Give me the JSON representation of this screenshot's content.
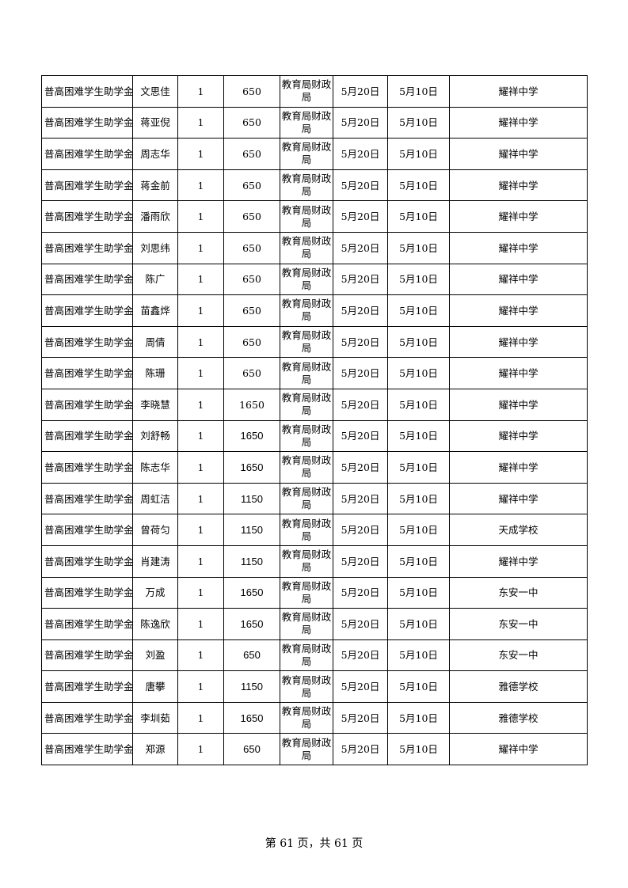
{
  "table": {
    "rows": [
      {
        "item": "普高困难学生助学金",
        "name": "文思佳",
        "count": "1",
        "amount": "650",
        "dept": "教育局财政局",
        "date1": "5月20日",
        "date2": "5月10日",
        "school": "耀祥中学"
      },
      {
        "item": "普高困难学生助学金",
        "name": "蒋亚倪",
        "count": "1",
        "amount": "650",
        "dept": "教育局财政局",
        "date1": "5月20日",
        "date2": "5月10日",
        "school": "耀祥中学"
      },
      {
        "item": "普高困难学生助学金",
        "name": "周志华",
        "count": "1",
        "amount": "650",
        "dept": "教育局财政局",
        "date1": "5月20日",
        "date2": "5月10日",
        "school": "耀祥中学"
      },
      {
        "item": "普高困难学生助学金",
        "name": "蒋金前",
        "count": "1",
        "amount": "650",
        "dept": "教育局财政局",
        "date1": "5月20日",
        "date2": "5月10日",
        "school": "耀祥中学"
      },
      {
        "item": "普高困难学生助学金",
        "name": "潘雨欣",
        "count": "1",
        "amount": "650",
        "dept": "教育局财政局",
        "date1": "5月20日",
        "date2": "5月10日",
        "school": "耀祥中学"
      },
      {
        "item": "普高困难学生助学金",
        "name": "刘思纬",
        "count": "1",
        "amount": "650",
        "dept": "教育局财政局",
        "date1": "5月20日",
        "date2": "5月10日",
        "school": "耀祥中学"
      },
      {
        "item": "普高困难学生助学金",
        "name": "陈广",
        "count": "1",
        "amount": "650",
        "dept": "教育局财政局",
        "date1": "5月20日",
        "date2": "5月10日",
        "school": "耀祥中学"
      },
      {
        "item": "普高困难学生助学金",
        "name": "苗鑫烨",
        "count": "1",
        "amount": "650",
        "dept": "教育局财政局",
        "date1": "5月20日",
        "date2": "5月10日",
        "school": "耀祥中学"
      },
      {
        "item": "普高困难学生助学金",
        "name": "周倩",
        "count": "1",
        "amount": "650",
        "dept": "教育局财政局",
        "date1": "5月20日",
        "date2": "5月10日",
        "school": "耀祥中学"
      },
      {
        "item": "普高困难学生助学金",
        "name": "陈珊",
        "count": "1",
        "amount": "650",
        "dept": "教育局财政局",
        "date1": "5月20日",
        "date2": "5月10日",
        "school": "耀祥中学"
      },
      {
        "item": "普高困难学生助学金",
        "name": "李晓慧",
        "count": "1",
        "amount": "1650",
        "dept": "教育局财政局",
        "date1": "5月20日",
        "date2": "5月10日",
        "school": "耀祥中学"
      },
      {
        "item": "普高困难学生助学金",
        "name": "刘舒畅",
        "count": "1",
        "amount": "1650",
        "dept": "教育局财政局",
        "date1": "5月20日",
        "date2": "5月10日",
        "school": "耀祥中学"
      },
      {
        "item": "普高困难学生助学金",
        "name": "陈志华",
        "count": "1",
        "amount": "1650",
        "dept": "教育局财政局",
        "date1": "5月20日",
        "date2": "5月10日",
        "school": "耀祥中学"
      },
      {
        "item": "普高困难学生助学金",
        "name": "周虹洁",
        "count": "1",
        "amount": "1150",
        "dept": "教育局财政局",
        "date1": "5月20日",
        "date2": "5月10日",
        "school": "耀祥中学"
      },
      {
        "item": "普高困难学生助学金",
        "name": "曾荷匀",
        "count": "1",
        "amount": "1150",
        "dept": "教育局财政局",
        "date1": "5月20日",
        "date2": "5月10日",
        "school": "天成学校"
      },
      {
        "item": "普高困难学生助学金",
        "name": "肖建涛",
        "count": "1",
        "amount": "1150",
        "dept": "教育局财政局",
        "date1": "5月20日",
        "date2": "5月10日",
        "school": "耀祥中学"
      },
      {
        "item": "普高困难学生助学金",
        "name": "万成",
        "count": "1",
        "amount": "1650",
        "dept": "教育局财政局",
        "date1": "5月20日",
        "date2": "5月10日",
        "school": "东安一中"
      },
      {
        "item": "普高困难学生助学金",
        "name": "陈逸欣",
        "count": "1",
        "amount": "1650",
        "dept": "教育局财政局",
        "date1": "5月20日",
        "date2": "5月10日",
        "school": "东安一中"
      },
      {
        "item": "普高困难学生助学金",
        "name": "刘盈",
        "count": "1",
        "amount": "650",
        "dept": "教育局财政局",
        "date1": "5月20日",
        "date2": "5月10日",
        "school": "东安一中"
      },
      {
        "item": "普高困难学生助学金",
        "name": "唐攀",
        "count": "1",
        "amount": "1150",
        "dept": "教育局财政局",
        "date1": "5月20日",
        "date2": "5月10日",
        "school": "雅德学校"
      },
      {
        "item": "普高困难学生助学金",
        "name": "李圳茹",
        "count": "1",
        "amount": "1650",
        "dept": "教育局财政局",
        "date1": "5月20日",
        "date2": "5月10日",
        "school": "雅德学校"
      },
      {
        "item": "普高困难学生助学金",
        "name": "郑源",
        "count": "1",
        "amount": "650",
        "dept": "教育局财政局",
        "date1": "5月20日",
        "date2": "5月10日",
        "school": "耀祥中学"
      }
    ]
  },
  "footer": {
    "page_label": "第 61 页，共 61 页"
  }
}
